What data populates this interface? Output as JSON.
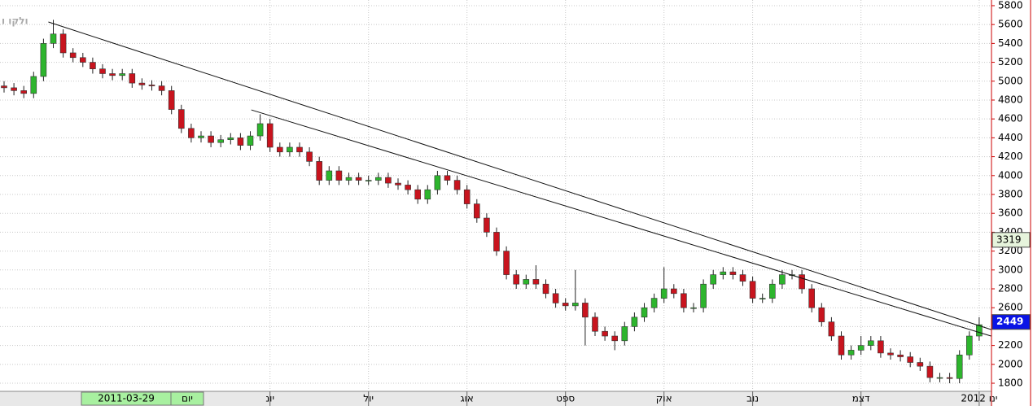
{
  "chart_data": {
    "type": "candlestick",
    "title": "ולקו ו",
    "cursor_date": "2011-03-29",
    "period": "יום",
    "up_color": "#2db52d",
    "down_color": "#c8141e",
    "grid": true,
    "ylim": [
      1714,
      5860
    ],
    "yticks": [
      1800,
      2000,
      2200,
      2400,
      2600,
      2800,
      3000,
      3200,
      3400,
      3600,
      3800,
      4000,
      4200,
      4400,
      4600,
      4800,
      5000,
      5200,
      5400,
      5600,
      5800
    ],
    "xticks": [
      {
        "value": 27,
        "label": "יונ"
      },
      {
        "value": 37,
        "label": "יול"
      },
      {
        "value": 47,
        "label": "אוג"
      },
      {
        "value": 57,
        "label": "ספט"
      },
      {
        "value": 67,
        "label": "אוק"
      },
      {
        "value": 76,
        "label": "נוב"
      },
      {
        "value": 87,
        "label": "דצמ"
      },
      {
        "value": 99,
        "label": "2012 ינו"
      }
    ],
    "open": [
      4950,
      4930,
      4900,
      4870,
      5050,
      5400,
      5500,
      5300,
      5250,
      5200,
      5130,
      5080,
      5060,
      5080,
      4980,
      4960,
      4950,
      4900,
      4700,
      4500,
      4400,
      4420,
      4350,
      4380,
      4400,
      4320,
      4420,
      4550,
      4300,
      4250,
      4300,
      4250,
      4150,
      3950,
      4050,
      3950,
      3980,
      3950,
      3950,
      3980,
      3920,
      3900,
      3850,
      3750,
      3850,
      4000,
      3950,
      3850,
      3700,
      3550,
      3400,
      3200,
      2950,
      2850,
      2900,
      2850,
      2750,
      2650,
      2620,
      2650,
      2500,
      2350,
      2300,
      2250,
      2400,
      2500,
      2600,
      2700,
      2800,
      2750,
      2600,
      2600,
      2850,
      2950,
      2980,
      2950,
      2880,
      2700,
      2700,
      2850,
      2950,
      2950,
      2800,
      2600,
      2450,
      2300,
      2100,
      2150,
      2200,
      2250,
      2120,
      2100,
      2080,
      2020,
      1980,
      1860,
      1860,
      1850,
      2100,
      2300
    ],
    "high": [
      5000,
      4980,
      4950,
      5100,
      5450,
      5650,
      5550,
      5350,
      5300,
      5250,
      5180,
      5130,
      5130,
      5130,
      5030,
      5010,
      5000,
      4950,
      4750,
      4550,
      4470,
      4470,
      4430,
      4450,
      4450,
      4470,
      4650,
      4600,
      4350,
      4350,
      4350,
      4300,
      4200,
      4100,
      4100,
      4030,
      4030,
      4000,
      4030,
      4030,
      3970,
      3950,
      3900,
      3900,
      4050,
      4050,
      4000,
      3900,
      3750,
      3600,
      3450,
      3250,
      3000,
      2950,
      3050,
      2900,
      2800,
      2700,
      3000,
      2700,
      2550,
      2400,
      2350,
      2450,
      2550,
      2650,
      2750,
      3030,
      2850,
      2800,
      2650,
      2900,
      3000,
      3030,
      3030,
      3000,
      2930,
      2750,
      2900,
      3000,
      3000,
      3000,
      2850,
      2650,
      2500,
      2350,
      2200,
      2300,
      2300,
      2300,
      2170,
      2150,
      2130,
      2070,
      2030,
      1910,
      1910,
      2150,
      2350,
      2500
    ],
    "low": [
      4880,
      4850,
      4820,
      4820,
      5000,
      5350,
      5250,
      5200,
      5150,
      5080,
      5030,
      5010,
      5010,
      4930,
      4910,
      4900,
      4850,
      4650,
      4450,
      4350,
      4350,
      4300,
      4300,
      4330,
      4270,
      4270,
      4370,
      4250,
      4200,
      4200,
      4200,
      4100,
      3900,
      3900,
      3900,
      3900,
      3900,
      3900,
      3900,
      3870,
      3850,
      3800,
      3700,
      3700,
      3800,
      3900,
      3800,
      3650,
      3500,
      3350,
      3150,
      2900,
      2800,
      2800,
      2800,
      2700,
      2600,
      2570,
      2570,
      2200,
      2300,
      2250,
      2150,
      2200,
      2350,
      2450,
      2550,
      2650,
      2700,
      2550,
      2550,
      2550,
      2800,
      2900,
      2900,
      2830,
      2650,
      2650,
      2650,
      2800,
      2900,
      2750,
      2550,
      2400,
      2250,
      2050,
      2050,
      2100,
      2150,
      2070,
      2050,
      2030,
      1970,
      1930,
      1810,
      1810,
      1800,
      1800,
      2050,
      2250
    ],
    "close": [
      4930,
      4900,
      4870,
      5050,
      5400,
      5500,
      5300,
      5250,
      5200,
      5130,
      5080,
      5060,
      5080,
      4980,
      4960,
      4950,
      4900,
      4700,
      4500,
      4400,
      4420,
      4350,
      4380,
      4400,
      4320,
      4420,
      4550,
      4300,
      4250,
      4300,
      4250,
      4150,
      3950,
      4050,
      3950,
      3980,
      3950,
      3950,
      3980,
      3920,
      3900,
      3850,
      3750,
      3850,
      4000,
      3950,
      3850,
      3700,
      3550,
      3400,
      3200,
      2950,
      2850,
      2900,
      2850,
      2750,
      2650,
      2620,
      2650,
      2500,
      2350,
      2300,
      2250,
      2400,
      2500,
      2600,
      2700,
      2800,
      2750,
      2600,
      2600,
      2850,
      2950,
      2980,
      2950,
      2880,
      2700,
      2700,
      2850,
      2950,
      2950,
      2800,
      2600,
      2450,
      2300,
      2100,
      2150,
      2200,
      2250,
      2120,
      2100,
      2080,
      2020,
      1980,
      1860,
      1860,
      1850,
      2100,
      2300,
      2420
    ],
    "trendlines": [
      {
        "x": [
          4.5,
          100.2
        ],
        "y": [
          5627,
          2369
        ]
      },
      {
        "x": [
          25.1,
          100.2
        ],
        "y": [
          4696,
          2300
        ]
      }
    ],
    "price_markers": [
      {
        "value": 3319,
        "color": "#e6f4dc"
      },
      {
        "value": 2449,
        "color": "#0a14e6"
      }
    ]
  }
}
